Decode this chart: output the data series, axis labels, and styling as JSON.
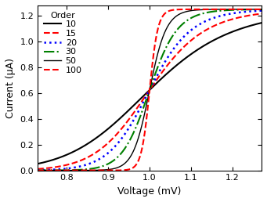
{
  "title": "",
  "xlabel": "Voltage (mV)",
  "ylabel": "Current (μA)",
  "xlim": [
    0.73,
    1.27
  ],
  "ylim": [
    0.0,
    1.28
  ],
  "xticks": [
    0.8,
    0.9,
    1.0,
    1.1,
    1.2
  ],
  "yticks": [
    0.0,
    0.2,
    0.4,
    0.6,
    0.8,
    1.0,
    1.2
  ],
  "V0": 1.0,
  "Imax": 1.25,
  "orders": [
    10,
    15,
    20,
    30,
    50,
    100
  ],
  "series_styles": [
    {
      "color": "black",
      "linestyle": "-",
      "linewidth": 1.5,
      "label": "10"
    },
    {
      "color": "red",
      "linestyle": "--",
      "linewidth": 1.5,
      "label": "15"
    },
    {
      "color": "blue",
      "linestyle": ":",
      "linewidth": 1.8,
      "label": "20"
    },
    {
      "color": "green",
      "linestyle": "-.",
      "linewidth": 1.5,
      "label": "30"
    },
    {
      "color": "black",
      "linestyle": "-",
      "linewidth": 1.0,
      "label": "50"
    },
    {
      "color": "red",
      "linestyle": "--",
      "linewidth": 1.5,
      "label": "100"
    }
  ],
  "legend_title": "Order",
  "legend_fontsize": 8,
  "legend_title_fontsize": 8,
  "tick_labelsize": 8,
  "axis_labelsize": 9,
  "background_color": "#ffffff"
}
